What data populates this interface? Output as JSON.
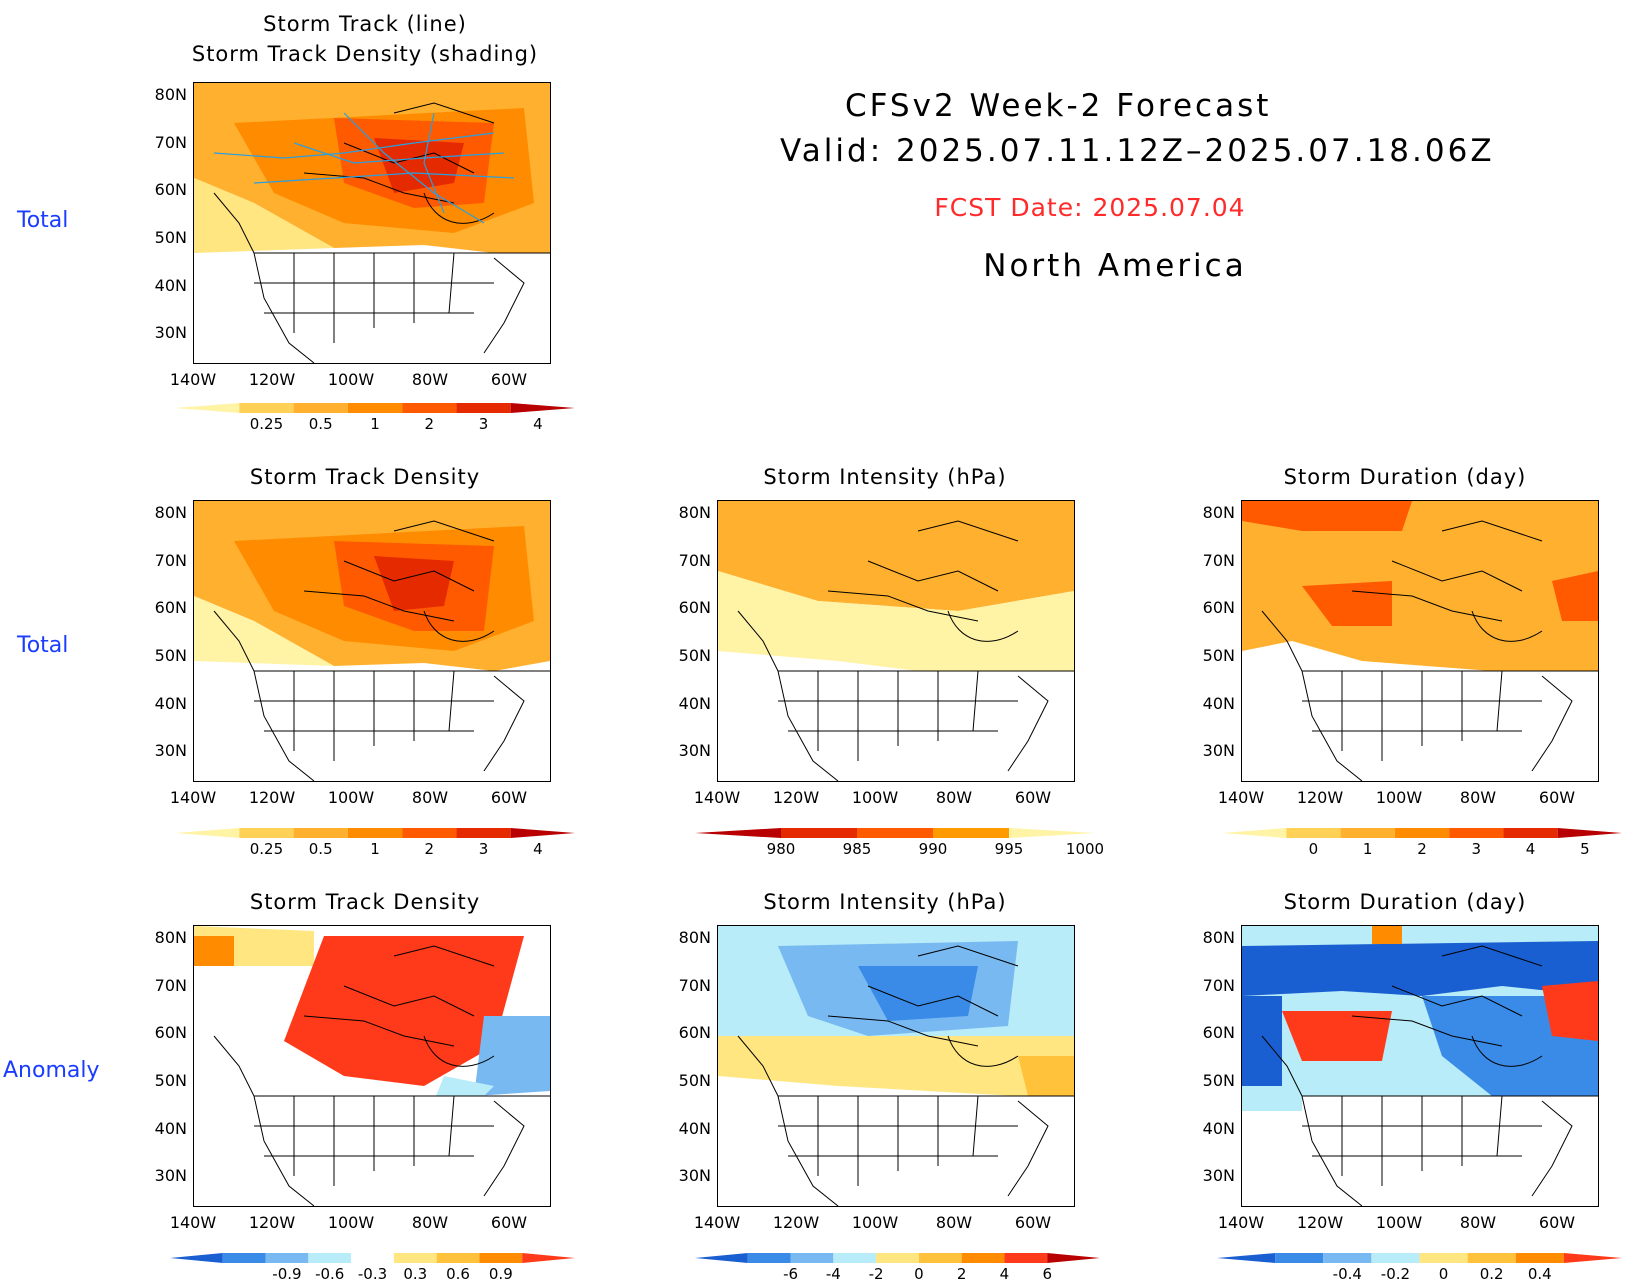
{
  "header": {
    "line1": "CFSv2 Week-2 Forecast",
    "line2": "Valid: 2025.07.11.12Z–2025.07.18.06Z",
    "fcst_date": "FCST Date: 2025.07.04",
    "region": "North America"
  },
  "row_labels": [
    "Total",
    "Total",
    "Anomaly"
  ],
  "lat_labels": [
    "80N",
    "70N",
    "60N",
    "50N",
    "40N",
    "30N"
  ],
  "lon_labels": [
    "140W",
    "120W",
    "100W",
    "80W",
    "60W"
  ],
  "panels": [
    {
      "title1": "Storm Track (line)",
      "title2": "Storm Track Density (shading)",
      "colorbar": {
        "labels": [
          "0.25",
          "0.5",
          "1",
          "2",
          "3",
          "4"
        ],
        "colors": [
          "#fff3a6",
          "#ffd257",
          "#ffb02e",
          "#ff8c00",
          "#ff5a00",
          "#e62a00",
          "#b80000"
        ]
      }
    },
    {
      "title1": "Storm Track Density",
      "colorbar": {
        "labels": [
          "0.25",
          "0.5",
          "1",
          "2",
          "3",
          "4"
        ],
        "colors": [
          "#fff3a6",
          "#ffd257",
          "#ffb02e",
          "#ff8c00",
          "#ff5a00",
          "#e62a00",
          "#b80000"
        ]
      }
    },
    {
      "title1": "Storm Intensity (hPa)",
      "colorbar": {
        "labels": [
          "980",
          "985",
          "990",
          "995",
          "1000"
        ],
        "colors": [
          "#b80000",
          "#e62a00",
          "#ff5a00",
          "#ff9a00",
          "#fff3a6"
        ]
      }
    },
    {
      "title1": "Storm Duration (day)",
      "colorbar": {
        "labels": [
          "0",
          "1",
          "2",
          "3",
          "4",
          "5"
        ],
        "colors": [
          "#fff3a6",
          "#ffd257",
          "#ffb02e",
          "#ff8c00",
          "#ff5a00",
          "#e62a00",
          "#b80000"
        ]
      }
    },
    {
      "title1": "Storm Track Density",
      "colorbar": {
        "labels": [
          "-0.9",
          "-0.6",
          "-0.3",
          "0.3",
          "0.6",
          "0.9"
        ],
        "colors": [
          "#1a5fd1",
          "#3a8be8",
          "#78b9f2",
          "#b8ecf8",
          "#ffffff",
          "#ffe680",
          "#ffc23a",
          "#ff8c00",
          "#ff3a1a"
        ]
      }
    },
    {
      "title1": "Storm Intensity (hPa)",
      "colorbar": {
        "labels": [
          "-6",
          "-4",
          "-2",
          "0",
          "2",
          "4",
          "6"
        ],
        "colors": [
          "#1a5fd1",
          "#3a8be8",
          "#78b9f2",
          "#b8ecf8",
          "#ffe680",
          "#ffc23a",
          "#ff8c00",
          "#ff3a1a",
          "#b80000"
        ]
      }
    },
    {
      "title1": "Storm Duration (day)",
      "colorbar": {
        "labels": [
          "-0.4",
          "-0.2",
          "0",
          "0.2",
          "0.4"
        ],
        "colors": [
          "#1a5fd1",
          "#3a8be8",
          "#78b9f2",
          "#b8ecf8",
          "#ffe680",
          "#ffc23a",
          "#ff8c00",
          "#ff3a1a"
        ]
      }
    }
  ]
}
